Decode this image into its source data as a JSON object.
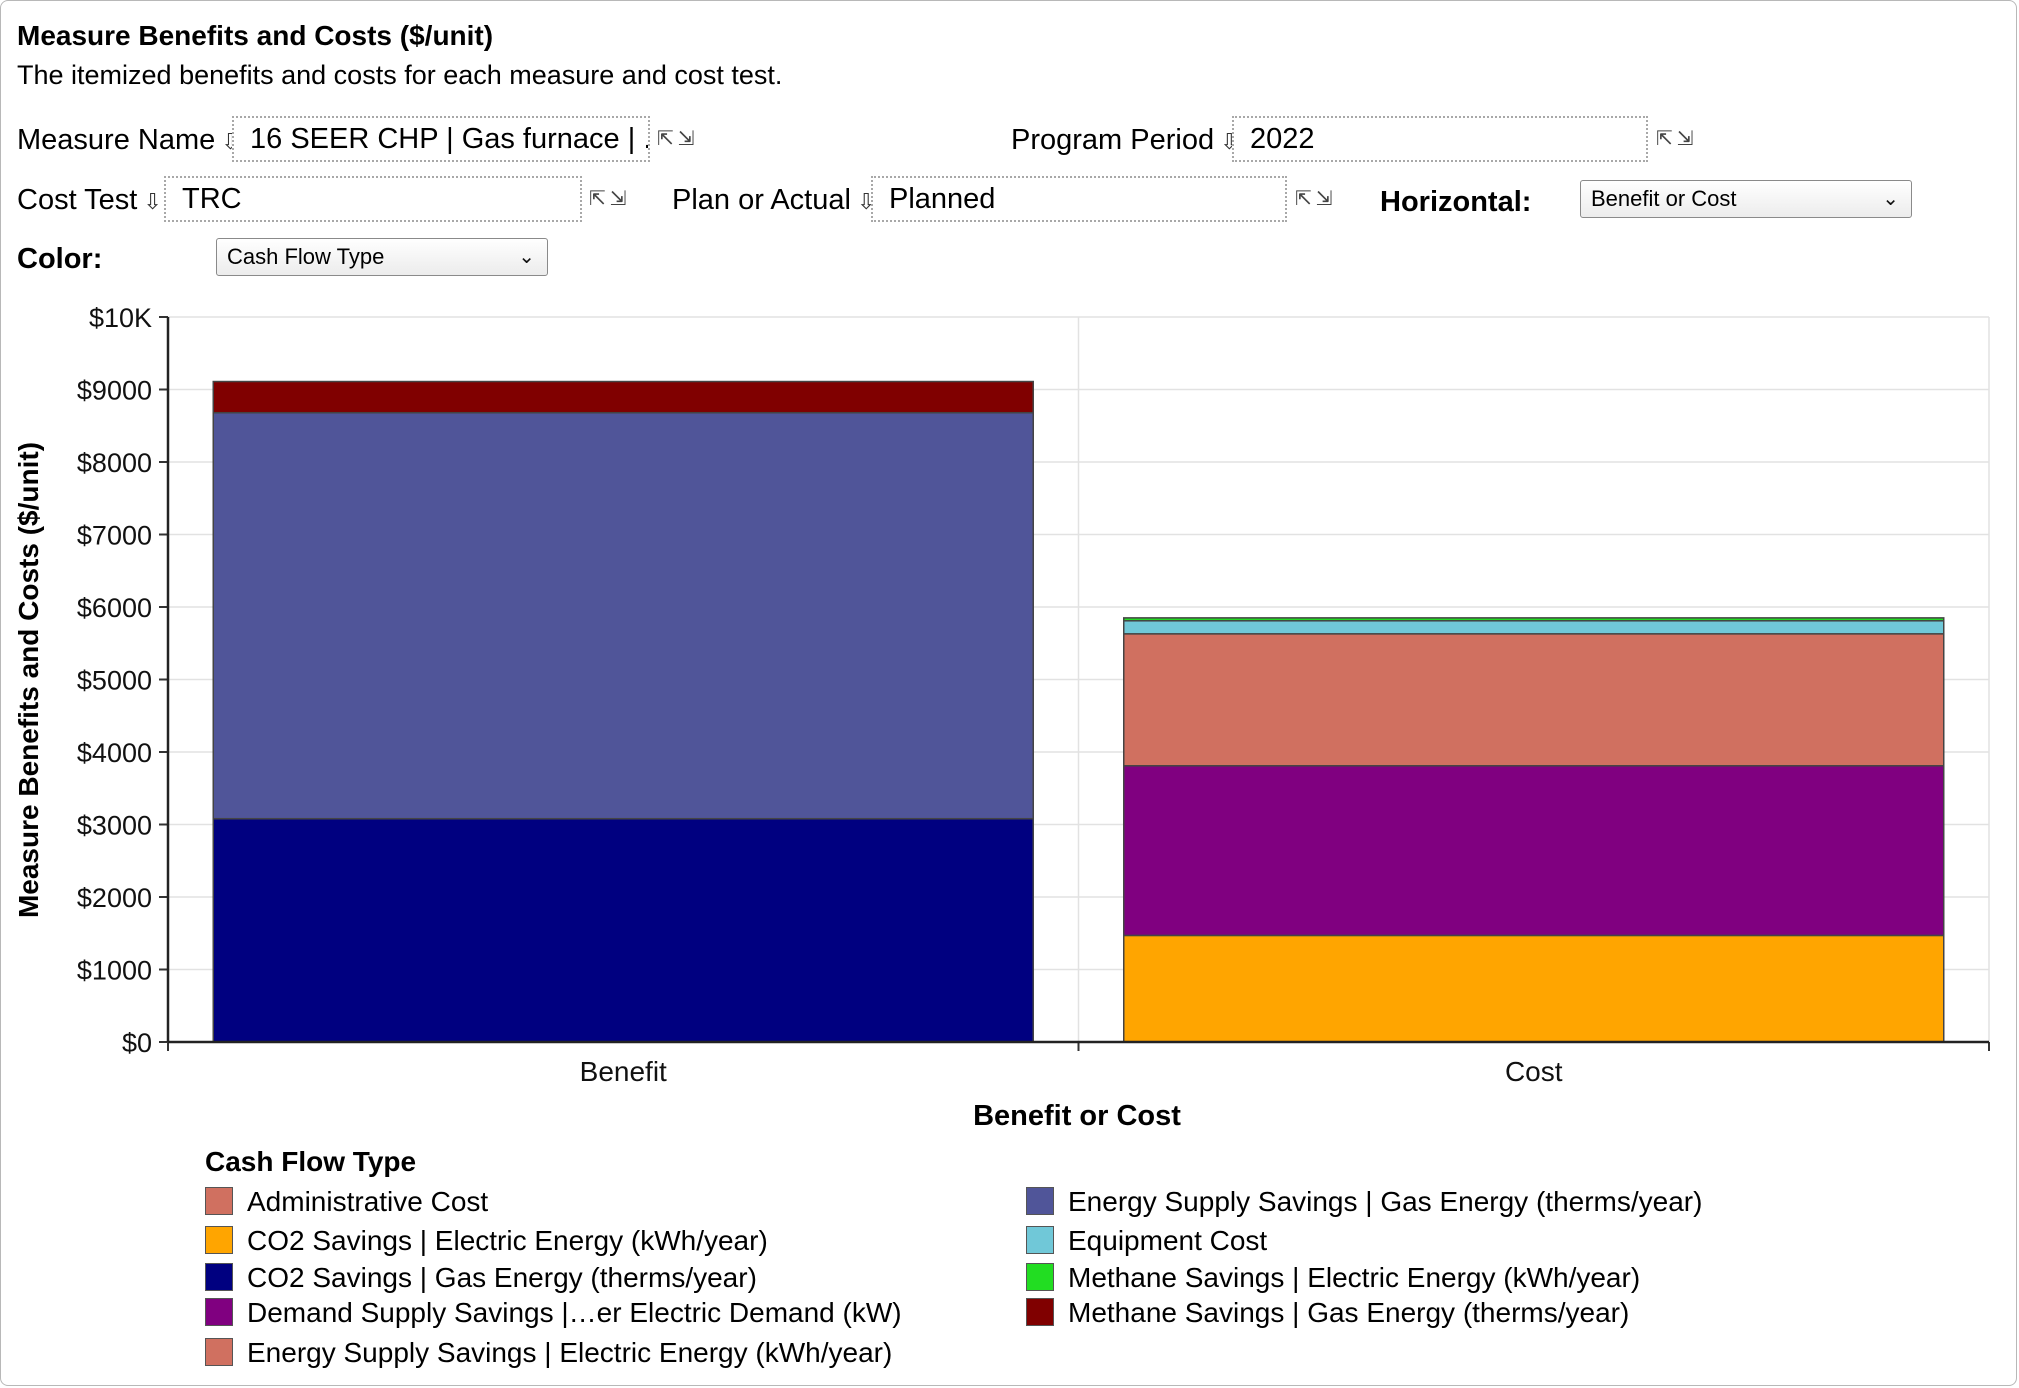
{
  "header": {
    "title": "Measure Benefits and Costs ($/unit)",
    "subtitle": "The itemized benefits and costs for each measure and cost test."
  },
  "controls": {
    "measure_name": {
      "label": "Measure Name",
      "value": "16 SEER CHP | Gas furnace | ..."
    },
    "program_period": {
      "label": "Program Period",
      "value": "2022"
    },
    "cost_test": {
      "label": "Cost Test",
      "value": "TRC"
    },
    "plan_or_actual": {
      "label": "Plan or Actual",
      "value": "Planned"
    },
    "horizontal": {
      "label": "Horizontal:",
      "value": "Benefit or Cost"
    },
    "color": {
      "label": "Color:",
      "value": "Cash Flow Type"
    }
  },
  "chart_data": {
    "type": "bar",
    "stacked": true,
    "categories": [
      "Benefit",
      "Cost"
    ],
    "xlabel": "Benefit or Cost",
    "ylabel": "Measure Benefits and Costs ($/unit)",
    "ylim": [
      0,
      10000
    ],
    "yticks": [
      "$0",
      "$1000",
      "$2000",
      "$3000",
      "$4000",
      "$5000",
      "$6000",
      "$7000",
      "$8000",
      "$9000",
      "$10K"
    ],
    "grid": true,
    "legend_title": "Cash Flow Type",
    "legend_position": "bottom",
    "series": [
      {
        "name": "Administrative Cost",
        "color": "#d07060",
        "values": [
          0,
          0
        ]
      },
      {
        "name": "CO2 Savings | Electric Energy (kWh/year)",
        "color": "#ffa500",
        "values": [
          0,
          1470
        ]
      },
      {
        "name": "CO2 Savings | Gas Energy (therms/year)",
        "color": "#000080",
        "values": [
          3080,
          0
        ]
      },
      {
        "name": "Demand Supply Savings |…er Electric Demand (kW)",
        "color": "#800080",
        "values": [
          0,
          2340
        ]
      },
      {
        "name": "Energy Supply Savings | Electric Energy (kWh/year)",
        "color": "#d07060",
        "values": [
          0,
          1820
        ]
      },
      {
        "name": "Energy Supply Savings | Gas Energy (therms/year)",
        "color": "#505599",
        "values": [
          5600,
          0
        ]
      },
      {
        "name": "Equipment Cost",
        "color": "#70c8d8",
        "values": [
          0,
          180
        ]
      },
      {
        "name": "Methane Savings | Electric Energy (kWh/year)",
        "color": "#22dd22",
        "values": [
          0,
          40
        ]
      },
      {
        "name": "Methane Savings | Gas Energy (therms/year)",
        "color": "#800000",
        "values": [
          430,
          0
        ]
      }
    ]
  }
}
